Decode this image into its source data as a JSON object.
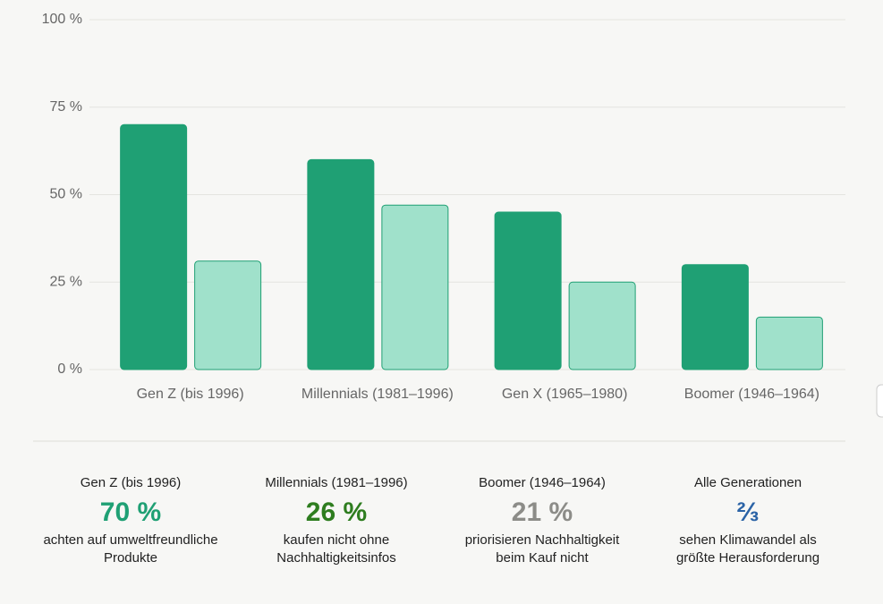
{
  "chart_data": {
    "type": "bar",
    "categories": [
      "Gen Z (bis 1996)",
      "Millennials (1981–1996)",
      "Gen X (1965–1980)",
      "Boomer (1946–1964)"
    ],
    "series": [
      {
        "color": "#1fa074",
        "values": [
          70,
          60,
          45,
          30
        ]
      },
      {
        "color": "#a0e1cb",
        "values": [
          31,
          47,
          25,
          15
        ]
      }
    ],
    "ylim": [
      0,
      100
    ],
    "yticks": [
      {
        "value": 0,
        "label": "0 %"
      },
      {
        "value": 25,
        "label": "25 %"
      },
      {
        "value": 50,
        "label": "50 %"
      },
      {
        "value": 75,
        "label": "75 %"
      },
      {
        "value": 100,
        "label": "100 %"
      }
    ],
    "grid": true
  },
  "stats": [
    {
      "title": "Gen Z (bis 1996)",
      "value": "70 %",
      "color": "#1fa074",
      "description": "achten auf umweltfreundliche Produkte"
    },
    {
      "title": "Millennials (1981–1996)",
      "value": "26 %",
      "color": "#2e7d1f",
      "description": "kaufen nicht ohne Nachhaltigkeitsinfos"
    },
    {
      "title": "Boomer (1946–1964)",
      "value": "21 %",
      "color": "#8c8c88",
      "description": "priorisieren Nachhaltigkeit beim Kauf nicht"
    },
    {
      "title": "Alle Generationen",
      "value": "⅔",
      "color": "#2b63a6",
      "description": "sehen Klimawandel als größte Herausforderung"
    }
  ]
}
